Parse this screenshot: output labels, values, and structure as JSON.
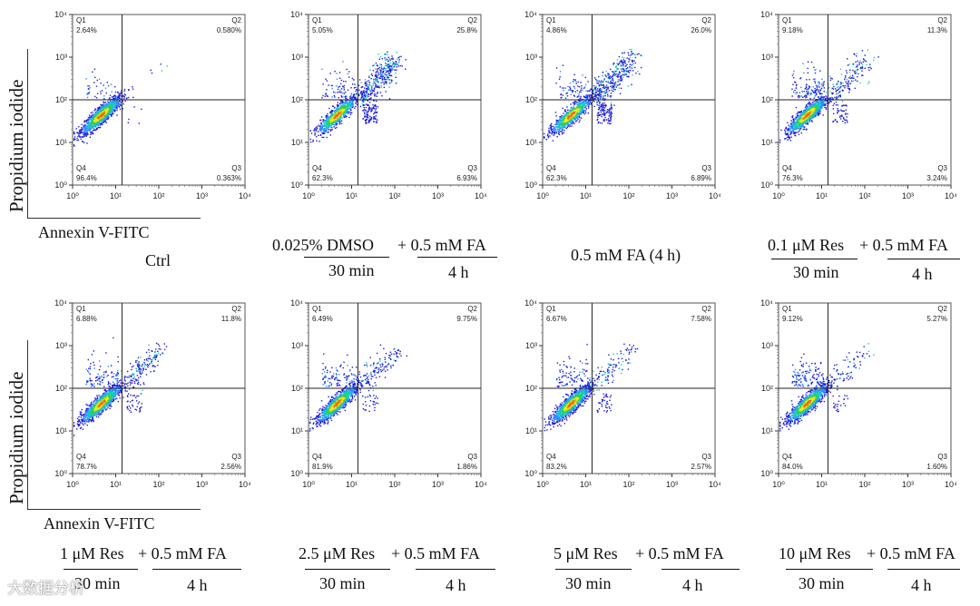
{
  "chart_data": {
    "type": "scatter",
    "subtype": "flow-cytometry-quadrant-dot-plots",
    "xlabel": "Annexin V-FITC",
    "ylabel": "Propidium iodide",
    "x_scale": "log",
    "y_scale": "log",
    "xlim": [
      1,
      10000
    ],
    "ylim": [
      1,
      10000
    ],
    "tick_labels": [
      "10⁰",
      "10¹",
      "10²",
      "10³",
      "10⁴"
    ],
    "gate": {
      "x": 14,
      "y": 100
    },
    "quadrant_labels": [
      "Q1",
      "Q2",
      "Q3",
      "Q4"
    ],
    "panels": [
      {
        "caption": "Ctrl",
        "q1": "2.64%",
        "q2": "0.580%",
        "q3": "0.363%",
        "q4": "96.4%"
      },
      {
        "caption_top_left": "0.025%  DMSO",
        "caption_top_right": "+ 0.5 mM FA",
        "caption_bottom_left": "30 min",
        "caption_bottom_right": "4 h",
        "q1": "5.05%",
        "q2": "25.8%",
        "q3": "6.93%",
        "q4": "62.3%"
      },
      {
        "caption": "0.5 mM FA (4 h)",
        "q1": "4.86%",
        "q2": "26.0%",
        "q3": "6.89%",
        "q4": "62.3%"
      },
      {
        "caption_top_left": "0.1 μM Res",
        "caption_top_right": "+ 0.5 mM FA",
        "caption_bottom_left": "30 min",
        "caption_bottom_right": "4 h",
        "q1": "9.18%",
        "q2": "11.3%",
        "q3": "3.24%",
        "q4": "76.3%"
      },
      {
        "caption_top_left": "1 μM Res",
        "caption_top_right": "+ 0.5 mM FA",
        "caption_bottom_left": "30 min",
        "caption_bottom_right": "4 h",
        "q1": "6.88%",
        "q2": "11.8%",
        "q3": "2.56%",
        "q4": "78.7%"
      },
      {
        "caption_top_left": "2.5 μM Res",
        "caption_top_right": "+ 0.5 mM FA",
        "caption_bottom_left": "30 min",
        "caption_bottom_right": "4 h",
        "q1": "6.49%",
        "q2": "9.75%",
        "q3": "1.86%",
        "q4": "81.9%"
      },
      {
        "caption_top_left": "5 μM Res",
        "caption_top_right": "+ 0.5 mM FA",
        "caption_bottom_left": "30 min",
        "caption_bottom_right": "4 h",
        "q1": "6.67%",
        "q2": "7.58%",
        "q3": "2.57%",
        "q4": "83.2%"
      },
      {
        "caption_top_left": "10 μM Res",
        "caption_top_right": "+ 0.5 mM FA",
        "caption_bottom_left": "30 min",
        "caption_bottom_right": "4 h",
        "q1": "9.12%",
        "q2": "5.27%",
        "q3": "1.60%",
        "q4": "84.0%"
      }
    ],
    "density_colors": [
      "#1b1bd6",
      "#2a8cff",
      "#17c9c3",
      "#2fd14b",
      "#f2e41f",
      "#f06a1c"
    ]
  },
  "watermark": "大数据分析"
}
